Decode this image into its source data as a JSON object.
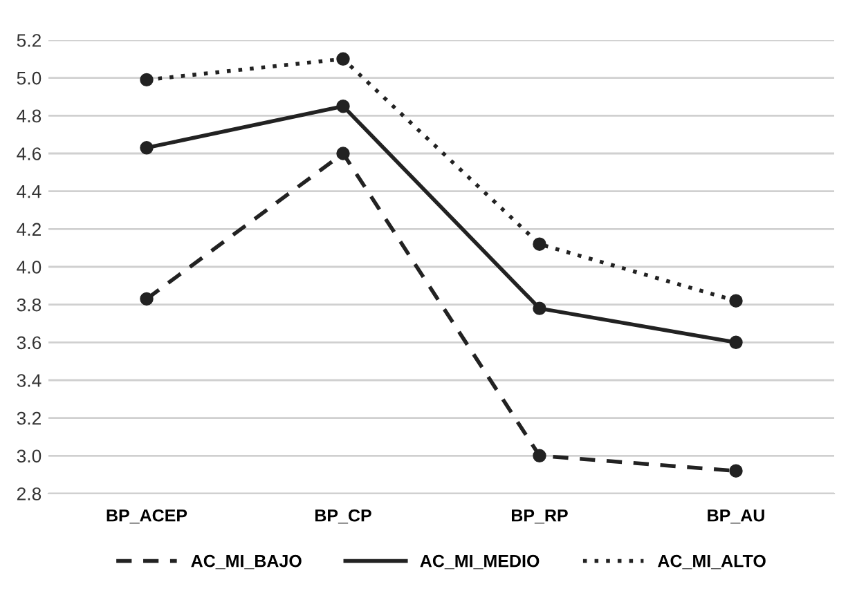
{
  "chart_data": {
    "type": "line",
    "categories": [
      "BP_ACEP",
      "BP_CP",
      "BP_RP",
      "BP_AU"
    ],
    "series": [
      {
        "name": "AC_MI_BAJO",
        "color": "#222222",
        "line_style": "dashed",
        "values": [
          3.83,
          4.6,
          3.0,
          2.92
        ]
      },
      {
        "name": "AC_MI_MEDIO",
        "color": "#222222",
        "line_style": "solid",
        "values": [
          4.63,
          4.85,
          3.78,
          3.6
        ]
      },
      {
        "name": "AC_MI_ALTO",
        "color": "#222222",
        "line_style": "dotted",
        "values": [
          4.99,
          5.1,
          4.12,
          3.82
        ]
      }
    ],
    "marker": "circle",
    "ylim": [
      2.8,
      5.2
    ],
    "yticks": [
      {
        "value": 2.8,
        "label": "2.8"
      },
      {
        "value": 3.0,
        "label": "3.0"
      },
      {
        "value": 3.2,
        "label": "3.2"
      },
      {
        "value": 3.4,
        "label": "3.4"
      },
      {
        "value": 3.6,
        "label": "3.6"
      },
      {
        "value": 3.8,
        "label": "3.8"
      },
      {
        "value": 4.0,
        "label": "4.0"
      },
      {
        "value": 4.2,
        "label": "4.2"
      },
      {
        "value": 4.4,
        "label": "4.4"
      },
      {
        "value": 4.6,
        "label": "4.6"
      },
      {
        "value": 4.8,
        "label": "4.8"
      },
      {
        "value": 5.0,
        "label": "5.0"
      },
      {
        "value": 5.2,
        "label": "5.2"
      }
    ],
    "grid": "y",
    "legend": "bottom"
  }
}
